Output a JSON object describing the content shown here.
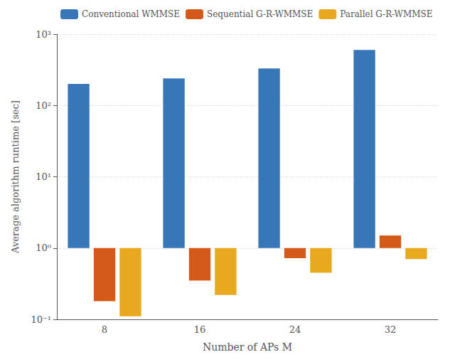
{
  "chart_data": {
    "type": "bar",
    "xlabel": "Number of APs M",
    "ylabel": "Average algorithm runtime [sec]",
    "categories": [
      8,
      16,
      24,
      32
    ],
    "series": [
      {
        "name": "Conventional WMMSE",
        "color": "#3777b8",
        "values": [
          200,
          240,
          330,
          600
        ]
      },
      {
        "name": "Sequential G-R-WMMSE",
        "color": "#d45a1a",
        "values": [
          0.18,
          0.35,
          0.72,
          1.5
        ]
      },
      {
        "name": "Parallel G-R-WMMSE",
        "color": "#e8a820",
        "values": [
          0.11,
          0.22,
          0.45,
          0.7
        ]
      }
    ],
    "log": "y",
    "ylim": [
      0.1,
      1000
    ],
    "yticks": [
      {
        "value": 0.1,
        "label": "10⁻¹"
      },
      {
        "value": 1,
        "label": "10⁰"
      },
      {
        "value": 10,
        "label": "10¹"
      },
      {
        "value": 100,
        "label": "10²"
      },
      {
        "value": 1000,
        "label": "10³"
      }
    ],
    "grid": true,
    "legend": "upper left"
  }
}
